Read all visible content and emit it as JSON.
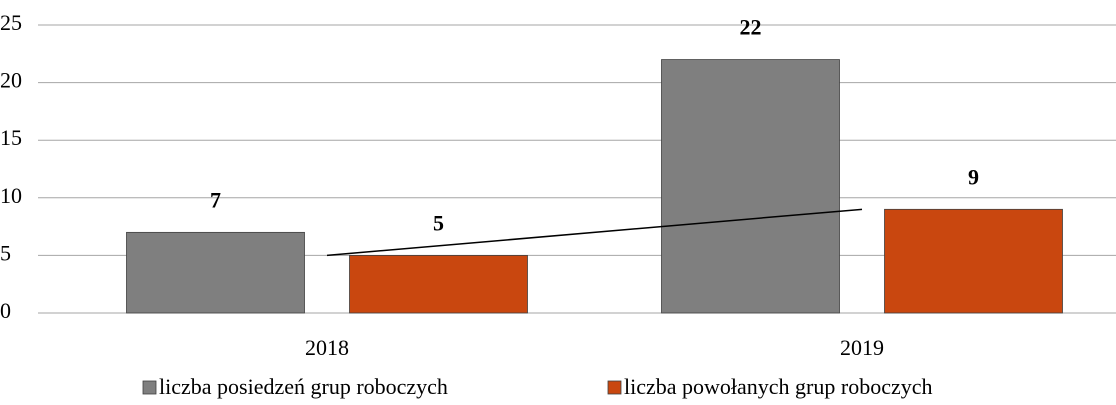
{
  "chart_data": {
    "type": "bar",
    "categories": [
      "2018",
      "2019"
    ],
    "series": [
      {
        "name": "liczba posiedzeń grup roboczych",
        "color": "#7f7f7f",
        "values": [
          7,
          22
        ]
      },
      {
        "name": "liczba powołanych grup roboczych",
        "color": "#c9470f",
        "values": [
          5,
          9
        ],
        "trendline": true
      }
    ],
    "ylim": [
      0,
      25
    ],
    "yticks": [
      0,
      5,
      10,
      15,
      20,
      25
    ],
    "grid": true,
    "legend": "bottom",
    "data_labels": true
  }
}
